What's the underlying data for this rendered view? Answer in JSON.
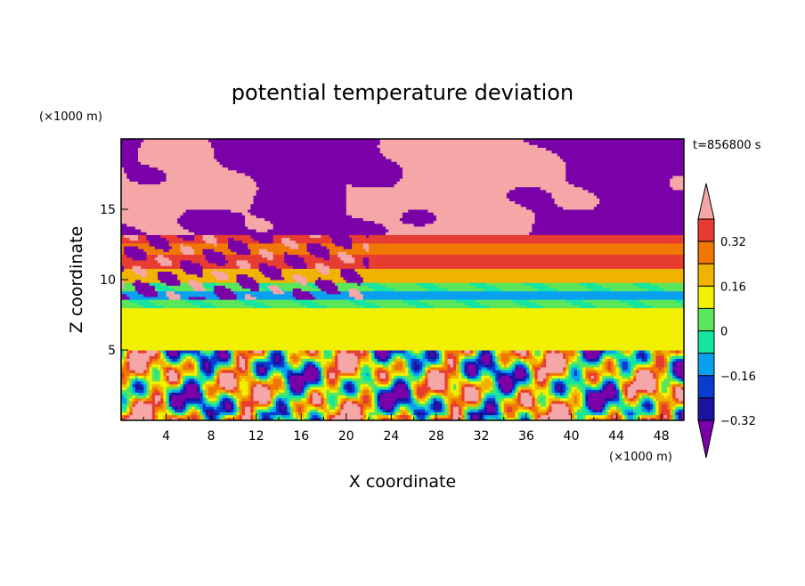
{
  "chart_data": {
    "type": "heatmap",
    "title": "potential temperature deviation",
    "xlabel": "X coordinate",
    "ylabel": "Z coordinate",
    "x_unit": "(×1000 m)",
    "y_unit": "(×1000 m)",
    "time_label": "t=856800 s",
    "xlim": [
      0,
      50
    ],
    "ylim": [
      0,
      20
    ],
    "x_ticks": [
      4,
      8,
      12,
      16,
      20,
      24,
      28,
      32,
      36,
      40,
      44,
      48
    ],
    "y_ticks": [
      5,
      10,
      15
    ],
    "colorbar": {
      "levels": [
        -0.4,
        -0.32,
        -0.24,
        -0.16,
        -0.08,
        0,
        0.08,
        0.16,
        0.24,
        0.32,
        0.4
      ],
      "colors": [
        "#7a00a8",
        "#1a14a0",
        "#0a3cd0",
        "#0aa0f0",
        "#14e6a0",
        "#5ae65a",
        "#f0f000",
        "#f0b400",
        "#f07800",
        "#e63c32",
        "#f5a7a7"
      ],
      "tick_labels": [
        "0.32",
        "0.16",
        "0",
        "−0.16",
        "−0.32"
      ],
      "tick_values": [
        0.32,
        0.16,
        0,
        -0.16,
        -0.32
      ],
      "extend": "both"
    },
    "bands": [
      {
        "z": [
          0,
          5.1
        ],
        "value": null
      },
      {
        "z": [
          5.1,
          6.5
        ],
        "value": 0.04
      },
      {
        "z": [
          6.5,
          8.0
        ],
        "value": 0.04
      },
      {
        "z": [
          8.0,
          8.6
        ],
        "value": -0.06
      },
      {
        "z": [
          8.6,
          9.2
        ],
        "value": -0.2
      },
      {
        "z": [
          9.2,
          9.8
        ],
        "value": -0.06
      },
      {
        "z": [
          9.8,
          10.8
        ],
        "value": 0.12
      },
      {
        "z": [
          10.8,
          11.8
        ],
        "value": 0.28
      },
      {
        "z": [
          11.8,
          12.6
        ],
        "value": 0.2
      },
      {
        "z": [
          12.6,
          13.2
        ],
        "value": 0.28
      },
      {
        "z": [
          13.2,
          20
        ],
        "value": -0.45
      }
    ]
  }
}
